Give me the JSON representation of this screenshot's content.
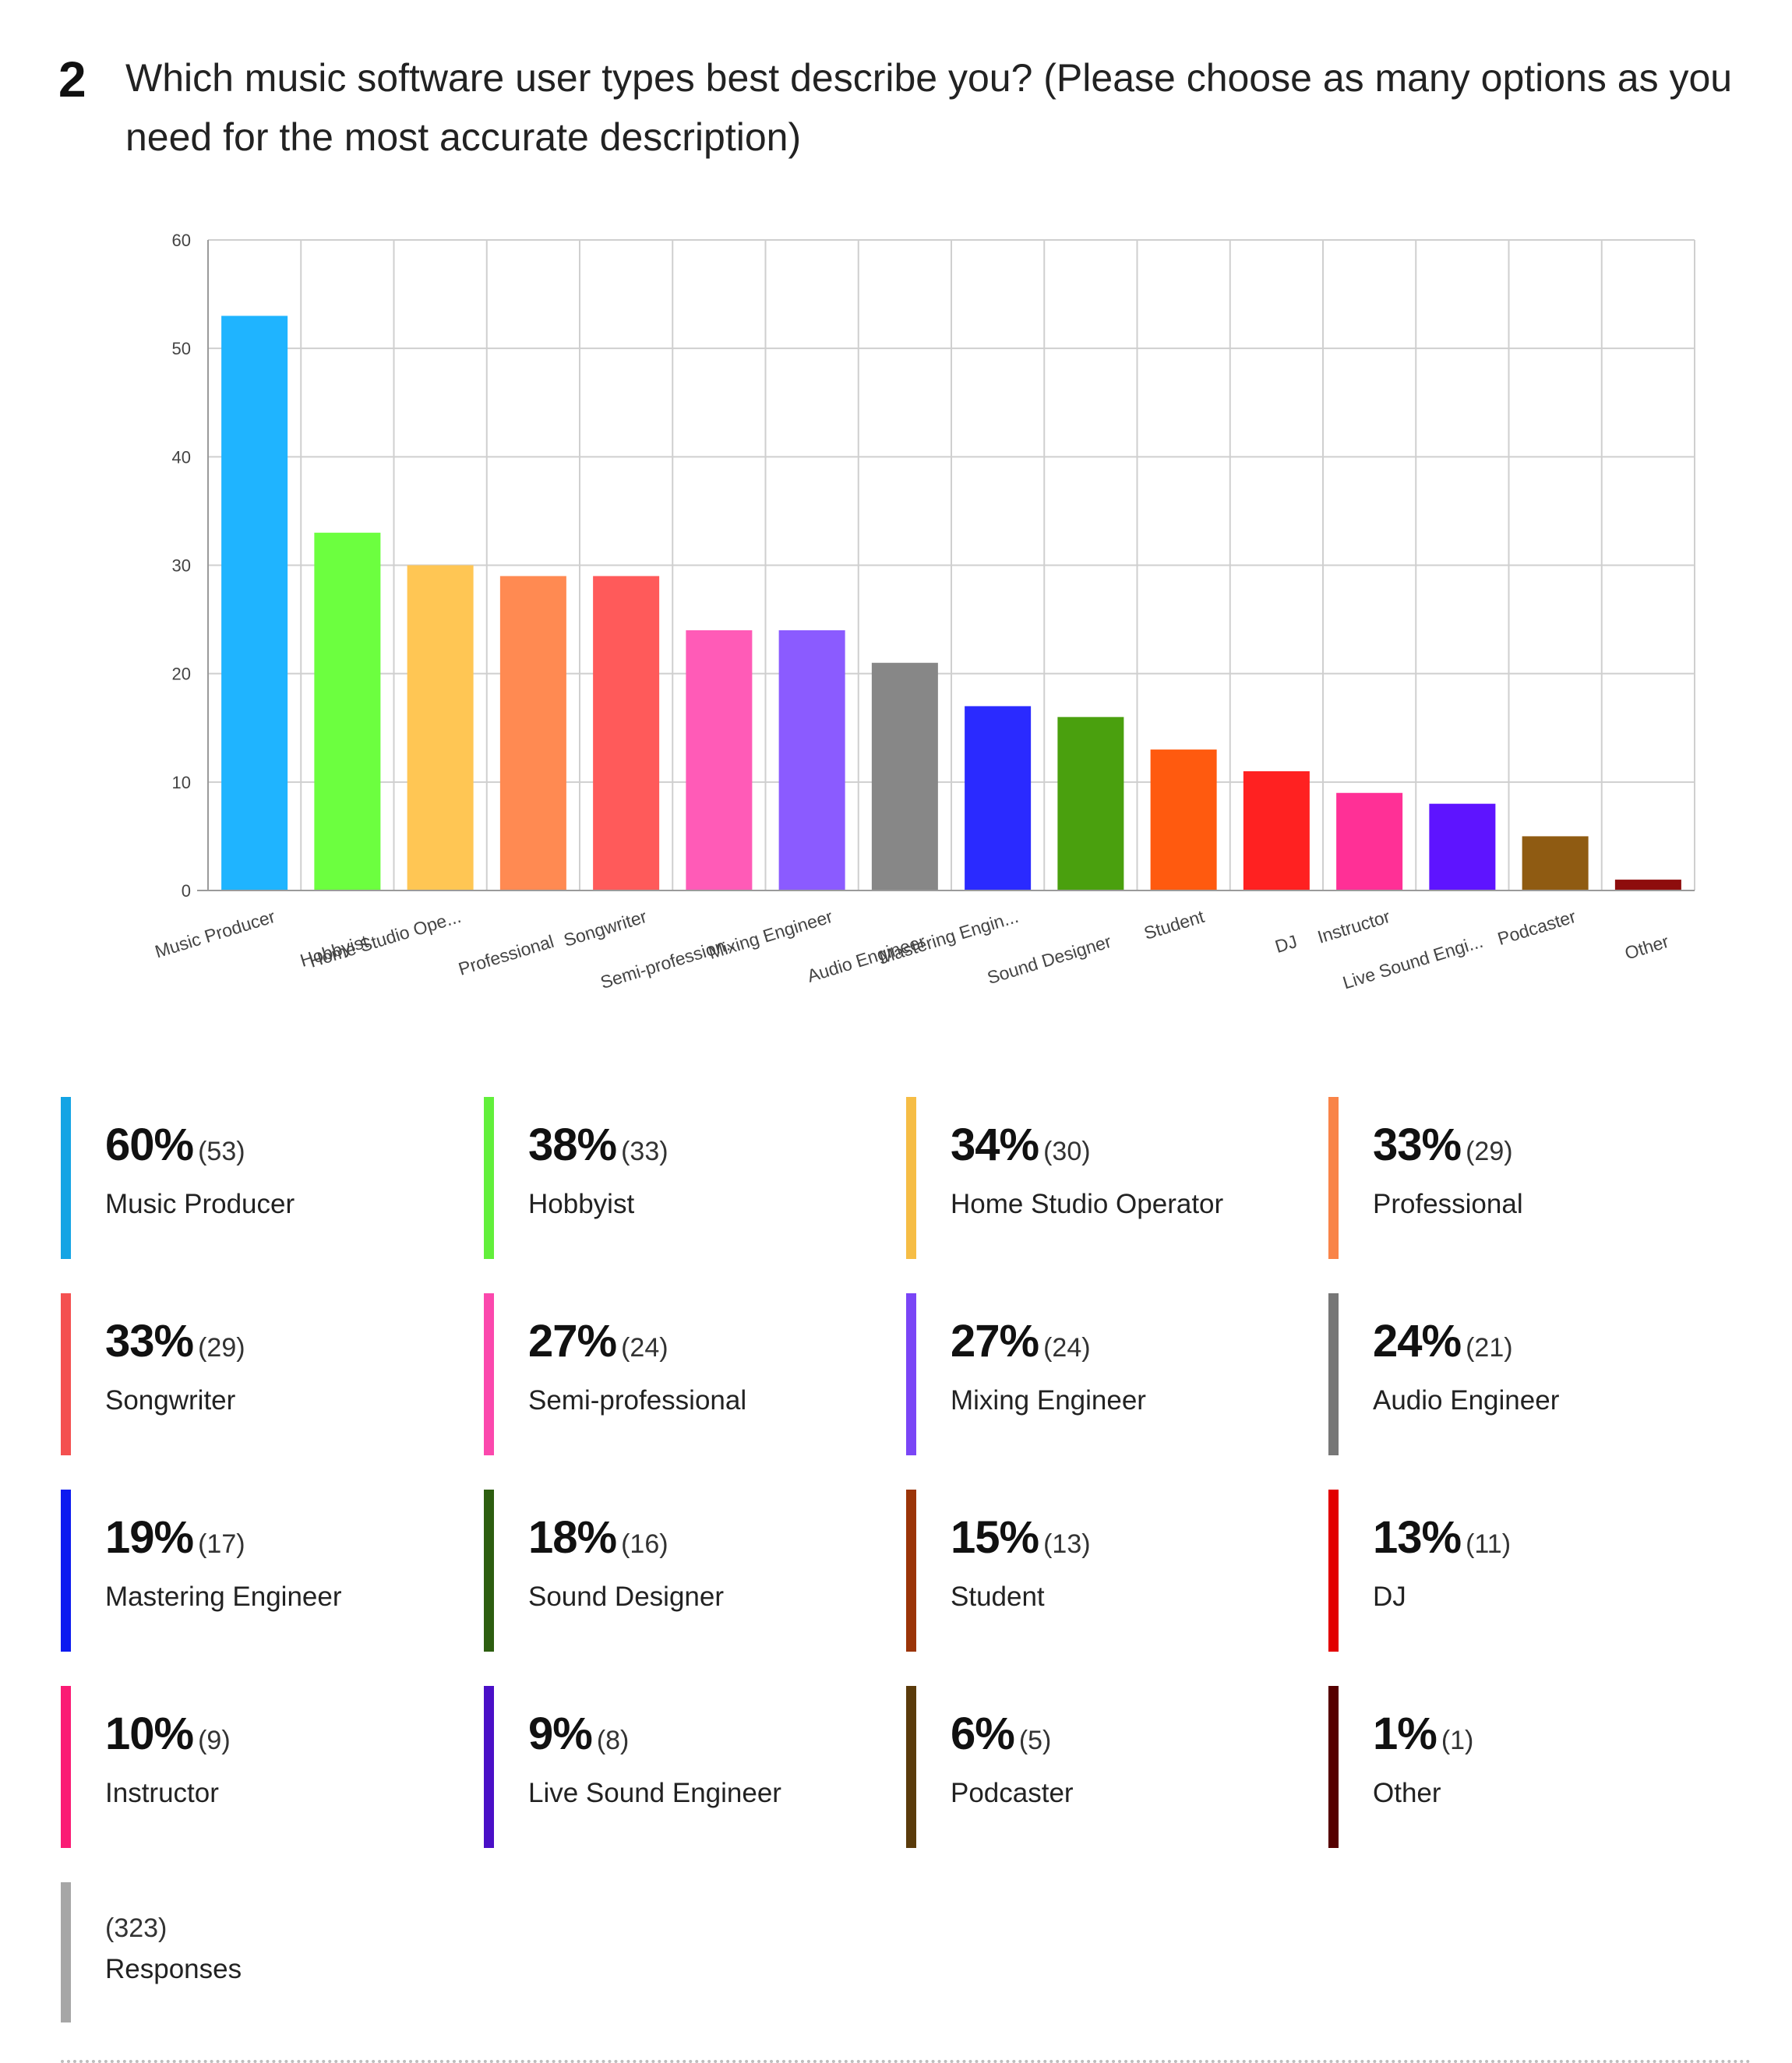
{
  "question": {
    "number": "2",
    "text": "Which music software user types best describe you? (Please choose as many options as you need for the most accurate description)"
  },
  "chart_data": {
    "type": "bar",
    "title": "",
    "xlabel": "",
    "ylabel": "",
    "ylim": [
      0,
      60
    ],
    "yticks": [
      0,
      10,
      20,
      30,
      40,
      50,
      60
    ],
    "grid": true,
    "categories": [
      "Music Producer",
      "Hobbyist",
      "Home Studio Operator",
      "Professional",
      "Songwriter",
      "Semi-professional",
      "Mixing Engineer",
      "Audio Engineer",
      "Mastering Engineer",
      "Sound Designer",
      "Student",
      "DJ",
      "Instructor",
      "Live Sound Engineer",
      "Podcaster",
      "Other"
    ],
    "tick_labels": [
      "Music Producer",
      "Hobbyist",
      "Home Studio Ope...",
      "Professional",
      "Songwriter",
      "Semi-profession...",
      "Mixing Engineer",
      "Audio Engineer",
      "Mastering Engin...",
      "Sound Designer",
      "Student",
      "DJ",
      "Instructor",
      "Live Sound Engi...",
      "Podcaster",
      "Other"
    ],
    "values": [
      53,
      33,
      30,
      29,
      29,
      24,
      24,
      21,
      17,
      16,
      13,
      11,
      9,
      8,
      5,
      1
    ],
    "colors": [
      "#1fb4ff",
      "#6cff3f",
      "#ffc654",
      "#ff8a52",
      "#ff5a5a",
      "#ff5bb7",
      "#8b5bff",
      "#878787",
      "#2a2aff",
      "#4aa00e",
      "#ff5a0f",
      "#ff2121",
      "#ff3096",
      "#5e14ff",
      "#8f5b12",
      "#8e0d0d"
    ]
  },
  "stats": [
    {
      "pct": "60%",
      "count": "(53)",
      "label": "Music Producer",
      "color": "#14a4e4"
    },
    {
      "pct": "38%",
      "count": "(33)",
      "label": "Hobbyist",
      "color": "#62ef3b"
    },
    {
      "pct": "34%",
      "count": "(30)",
      "label": "Home Studio Operator",
      "color": "#f6bd45"
    },
    {
      "pct": "33%",
      "count": "(29)",
      "label": "Professional",
      "color": "#f98448"
    },
    {
      "pct": "33%",
      "count": "(29)",
      "label": "Songwriter",
      "color": "#f45050"
    },
    {
      "pct": "27%",
      "count": "(24)",
      "label": "Semi-professional",
      "color": "#fb48ad"
    },
    {
      "pct": "27%",
      "count": "(24)",
      "label": "Mixing Engineer",
      "color": "#7a45f6"
    },
    {
      "pct": "24%",
      "count": "(21)",
      "label": "Audio Engineer",
      "color": "#777777"
    },
    {
      "pct": "19%",
      "count": "(17)",
      "label": "Mastering Engineer",
      "color": "#0c1af0"
    },
    {
      "pct": "18%",
      "count": "(16)",
      "label": "Sound Designer",
      "color": "#2d5e10"
    },
    {
      "pct": "15%",
      "count": "(13)",
      "label": "Student",
      "color": "#9b3408"
    },
    {
      "pct": "13%",
      "count": "(11)",
      "label": "DJ",
      "color": "#e20000"
    },
    {
      "pct": "10%",
      "count": "(9)",
      "label": "Instructor",
      "color": "#fa1b74"
    },
    {
      "pct": "9%",
      "count": "(8)",
      "label": "Live Sound Engineer",
      "color": "#4a0fc7"
    },
    {
      "pct": "6%",
      "count": "(5)",
      "label": "Podcaster",
      "color": "#5a3b0b"
    },
    {
      "pct": "1%",
      "count": "(1)",
      "label": "Other",
      "color": "#560000"
    }
  ],
  "total": {
    "count": "(323)",
    "label": "Responses",
    "color": "#a6a6a6"
  }
}
